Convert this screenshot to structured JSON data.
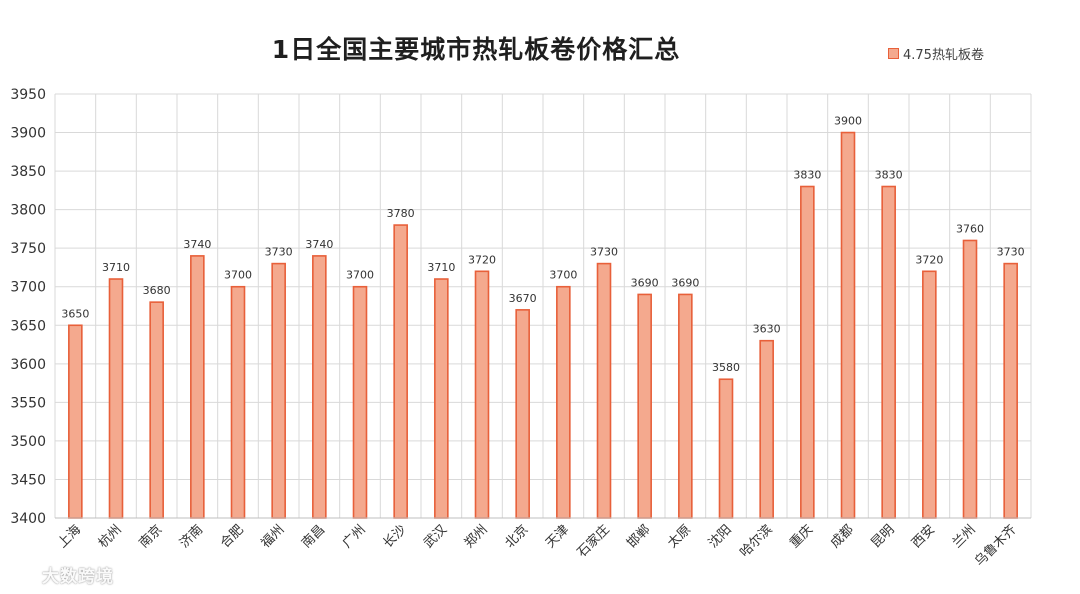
{
  "chart_data": {
    "type": "bar",
    "title": "1日全国主要城市热轧板卷价格汇总",
    "categories": [
      "上海",
      "杭州",
      "南京",
      "济南",
      "合肥",
      "福州",
      "南昌",
      "广州",
      "长沙",
      "武汉",
      "郑州",
      "北京",
      "天津",
      "石家庄",
      "邯郸",
      "太原",
      "沈阳",
      "哈尔滨",
      "重庆",
      "成都",
      "昆明",
      "西安",
      "兰州",
      "乌鲁木齐"
    ],
    "series": [
      {
        "name": "4.75热轧板卷",
        "values": [
          3650,
          3710,
          3680,
          3740,
          3700,
          3730,
          3740,
          3700,
          3780,
          3710,
          3720,
          3670,
          3700,
          3730,
          3690,
          3690,
          3580,
          3630,
          3830,
          3900,
          3830,
          3720,
          3760,
          3730
        ]
      }
    ],
    "ylim": [
      3400,
      3950
    ],
    "yticks": [
      3400,
      3450,
      3500,
      3550,
      3600,
      3650,
      3700,
      3750,
      3800,
      3850,
      3900,
      3950
    ],
    "xlabel": "",
    "ylabel": "",
    "grid": true,
    "legend_position": "top-right",
    "colors": {
      "bar_fill": "#f4a98e",
      "bar_stroke": "#e8603a",
      "grid": "#d9d9d9"
    }
  },
  "watermark": {
    "text": "大数跨境",
    "icon": "balloon-logo-icon"
  }
}
